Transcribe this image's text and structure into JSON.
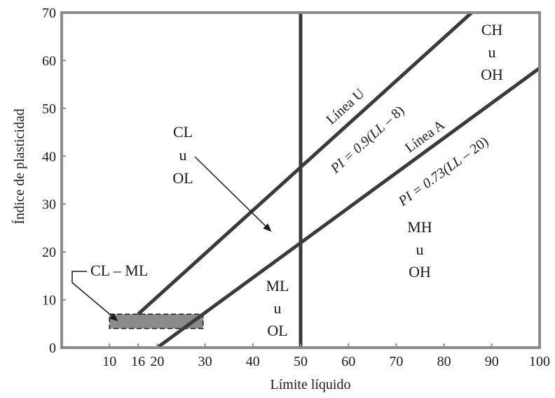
{
  "chart_data": {
    "type": "line",
    "title": "",
    "xlabel": "Límite líquido",
    "ylabel": "Índice de plasticidad",
    "xlim": [
      0,
      100
    ],
    "ylim": [
      0,
      70
    ],
    "x_ticks": [
      10,
      16,
      20,
      30,
      40,
      50,
      60,
      70,
      80,
      90,
      100
    ],
    "y_ticks": [
      0,
      10,
      20,
      30,
      40,
      50,
      60,
      70
    ],
    "grid": false,
    "series": [
      {
        "name": "Línea U",
        "equation": [
          "PI = 0.9(",
          "LL",
          " – 8)"
        ],
        "x": [
          16,
          85.8
        ],
        "y": [
          7,
          70
        ],
        "color": "#3a3a3a"
      },
      {
        "name": "Línea A",
        "equation": [
          "PI = 0.73(",
          "LL",
          " – 20)"
        ],
        "x": [
          20,
          100
        ],
        "y": [
          0,
          58.4
        ],
        "color": "#3a3a3a"
      },
      {
        "name": "",
        "x": [
          50,
          50
        ],
        "y": [
          0,
          70
        ],
        "color": "#3a3a3a"
      }
    ],
    "regions": [
      {
        "lines": [
          "CL",
          "u",
          "OL"
        ]
      },
      {
        "lines": [
          "CH",
          "u",
          "OH"
        ]
      },
      {
        "lines": [
          "MH",
          "u",
          "OH"
        ]
      },
      {
        "lines": [
          "ML",
          "u",
          "OL"
        ]
      }
    ],
    "cl_ml_zone": {
      "label": "CL – ML",
      "x_range": [
        10,
        29.6
      ],
      "pi_range": [
        4,
        7
      ],
      "fill": "#8a8a8a"
    },
    "colors": {
      "axis": "#8c8c8c",
      "line": "#3a3a3a",
      "text": "#1a1a1a"
    }
  }
}
